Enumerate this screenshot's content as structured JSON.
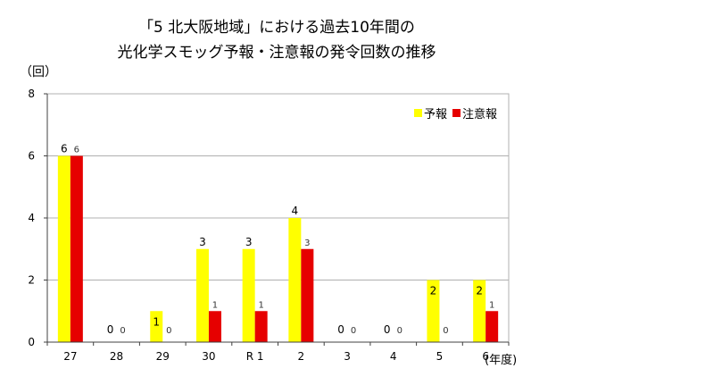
{
  "title_line1": "「5 北大阪地域」における過去10年間の",
  "title_line2": "光化学スモッグ予報・注意報の発令回数の推移",
  "y_unit": "（回）",
  "x_unit": "(年度)",
  "colors": {
    "forecast": "#ffff00",
    "warning": "#e60000",
    "grid": "#b0b0b0",
    "axis": "#404040"
  },
  "chart_data": {
    "type": "bar",
    "categories": [
      "27",
      "28",
      "29",
      "30",
      "R 1",
      "2",
      "3",
      "4",
      "5",
      "6"
    ],
    "series": [
      {
        "name": "予報",
        "values": [
          6,
          0,
          1,
          3,
          3,
          4,
          0,
          0,
          2,
          2
        ]
      },
      {
        "name": "注意報",
        "values": [
          6,
          0,
          0,
          1,
          1,
          3,
          0,
          0,
          0,
          1
        ]
      }
    ],
    "y_ticks": [
      "0",
      "2",
      "4",
      "6",
      "8"
    ],
    "ylim": [
      0,
      8
    ],
    "grid": true,
    "legend_position": "top-right"
  }
}
